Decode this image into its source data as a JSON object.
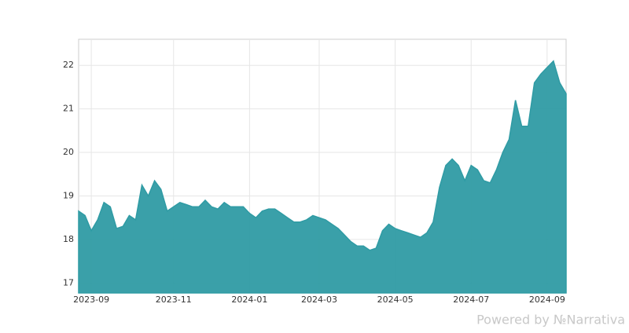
{
  "chart_data": {
    "type": "area",
    "categories": [
      null,
      null,
      "2023-09",
      null,
      null,
      null,
      null,
      null,
      null,
      null,
      null,
      null,
      null,
      null,
      null,
      "2023-11",
      null,
      null,
      null,
      null,
      null,
      null,
      null,
      null,
      null,
      null,
      null,
      "2024-01",
      null,
      null,
      null,
      null,
      null,
      null,
      null,
      null,
      null,
      null,
      "2024-03",
      null,
      null,
      null,
      null,
      null,
      null,
      null,
      null,
      null,
      null,
      null,
      "2024-05",
      null,
      null,
      null,
      null,
      null,
      null,
      null,
      null,
      null,
      null,
      null,
      "2024-07",
      null,
      null,
      null,
      null,
      null,
      null,
      null,
      null,
      null,
      null,
      null,
      "2024-09",
      null,
      null,
      null
    ],
    "values": [
      18.65,
      18.55,
      18.2,
      18.45,
      18.85,
      18.75,
      18.25,
      18.3,
      18.55,
      18.45,
      19.25,
      19.0,
      19.35,
      19.15,
      18.65,
      18.75,
      18.85,
      18.8,
      18.75,
      18.75,
      18.9,
      18.75,
      18.7,
      18.85,
      18.75,
      18.75,
      18.75,
      18.6,
      18.5,
      18.65,
      18.7,
      18.7,
      18.6,
      18.5,
      18.4,
      18.4,
      18.45,
      18.55,
      18.5,
      18.45,
      18.35,
      18.25,
      18.1,
      17.95,
      17.85,
      17.85,
      17.75,
      17.8,
      18.2,
      18.35,
      18.25,
      18.2,
      18.15,
      18.1,
      18.05,
      18.15,
      18.4,
      19.2,
      19.7,
      19.85,
      19.7,
      19.35,
      19.7,
      19.6,
      19.35,
      19.3,
      19.6,
      20.0,
      20.3,
      21.2,
      20.6,
      20.6,
      21.6,
      21.8,
      21.95,
      22.1,
      21.6,
      21.35
    ],
    "color": "#2f9ba4",
    "ylim": [
      16.77,
      22.6
    ],
    "yticks": [
      17,
      18,
      19,
      20,
      21,
      22
    ],
    "grid": true,
    "watermark": "Powered by  №Narrativa"
  }
}
